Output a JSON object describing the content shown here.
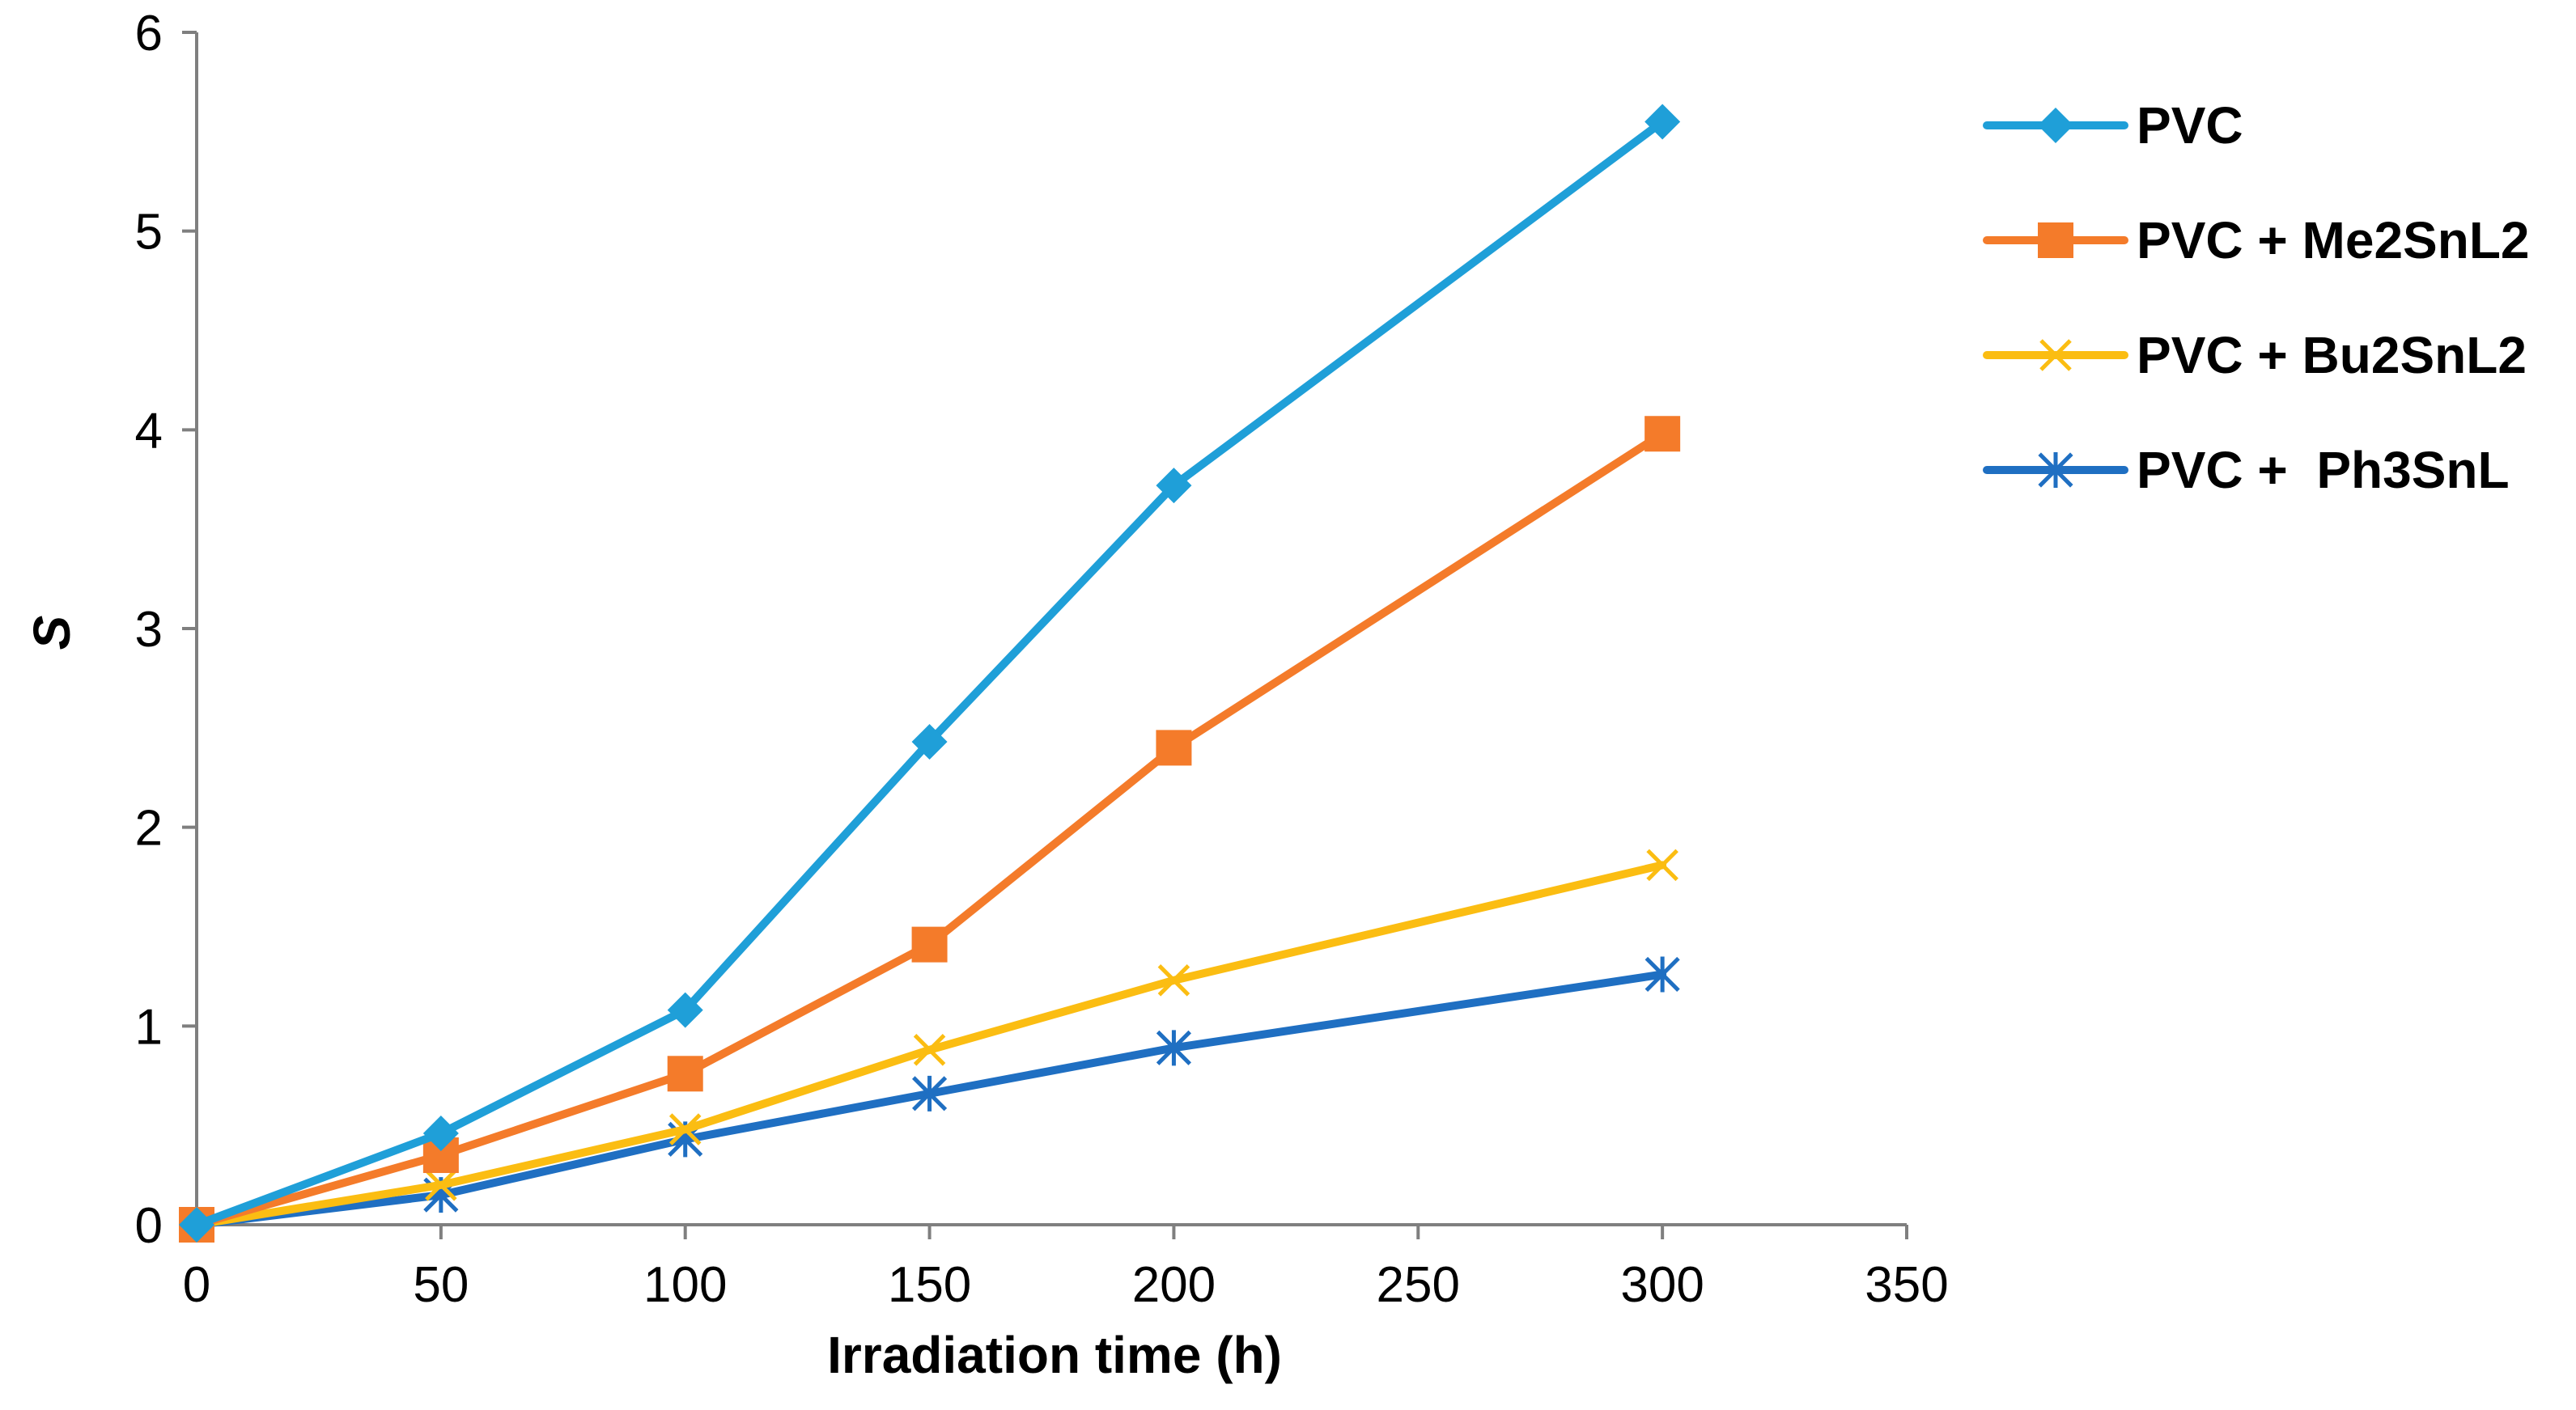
{
  "chart_data": {
    "type": "line",
    "title": "",
    "xlabel": "Irradiation time (h)",
    "ylabel": "S",
    "xlim": [
      0,
      350
    ],
    "ylim": [
      0,
      6
    ],
    "xticks": [
      0,
      50,
      100,
      150,
      200,
      250,
      300,
      350
    ],
    "yticks": [
      0,
      1,
      2,
      3,
      4,
      5,
      6
    ],
    "grid": false,
    "legend_position": "right",
    "x": [
      0,
      50,
      100,
      150,
      200,
      300
    ],
    "series": [
      {
        "name": "PVC",
        "color": "#1f9fd8",
        "marker": "diamond",
        "values": [
          0,
          0.46,
          1.08,
          2.43,
          3.72,
          5.55
        ]
      },
      {
        "name": "PVC + Me2SnL2",
        "color": "#f47b2a",
        "marker": "square",
        "values": [
          0,
          0.35,
          0.76,
          1.41,
          2.4,
          3.98
        ]
      },
      {
        "name": "PVC + Bu2SnL2",
        "color": "#fbbd12",
        "marker": "x",
        "values": [
          0,
          0.2,
          0.48,
          0.88,
          1.23,
          1.81
        ]
      },
      {
        "name": "PVC +  Ph3SnL",
        "color": "#1f6fc2",
        "marker": "star",
        "values": [
          0,
          0.15,
          0.43,
          0.66,
          0.89,
          1.26
        ]
      }
    ]
  }
}
